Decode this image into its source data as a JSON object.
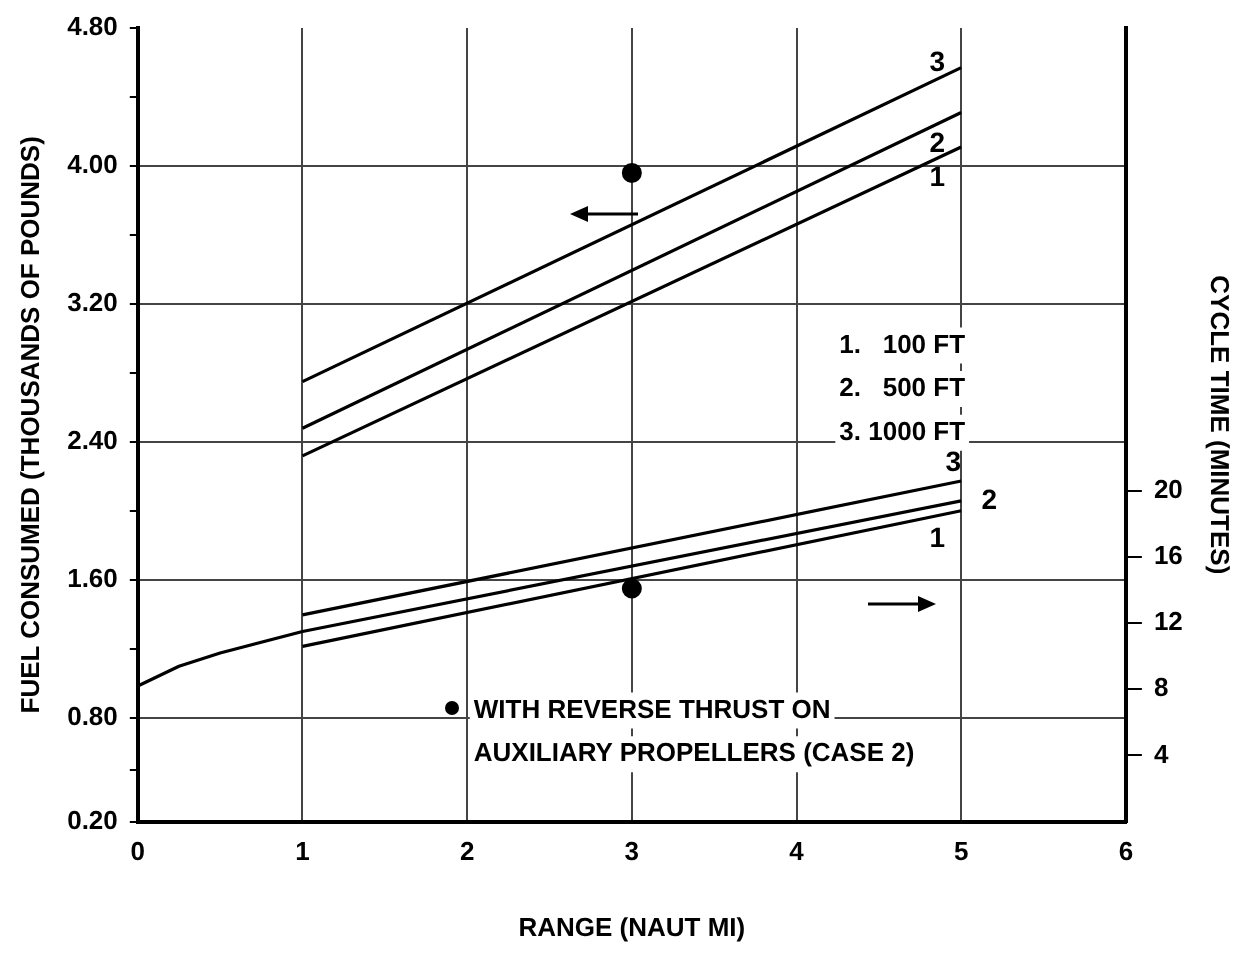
{
  "chart_data": {
    "type": "line",
    "xlabel": "RANGE (NAUT MI)",
    "ylabel": "FUEL CONSUMED (THOUSANDS OF POUNDS)",
    "y2label": "CYCLE TIME (MINUTES)",
    "xlim": [
      0,
      6
    ],
    "xticks": [
      0,
      1,
      2,
      3,
      4,
      5,
      6
    ],
    "ylim": [
      0.2,
      4.8
    ],
    "yticks": [
      {
        "value": 0.2,
        "label": "0.20"
      },
      {
        "value": 0.5,
        "label": null
      },
      {
        "value": 0.8,
        "label": "0.80"
      },
      {
        "value": 1.2,
        "label": null
      },
      {
        "value": 1.6,
        "label": "1.60"
      },
      {
        "value": 2.0,
        "label": null
      },
      {
        "value": 2.4,
        "label": "2.40"
      },
      {
        "value": 2.8,
        "label": null
      },
      {
        "value": 3.2,
        "label": "3.20"
      },
      {
        "value": 3.6,
        "label": null
      },
      {
        "value": 4.0,
        "label": "4.00"
      },
      {
        "value": 4.4,
        "label": null
      },
      {
        "value": 4.8,
        "label": "4.80"
      }
    ],
    "y2lim": [
      0,
      48
    ],
    "y2ticks": [
      4,
      8,
      12,
      16,
      20
    ],
    "grid": true,
    "legend": false,
    "marker": "none",
    "line_style": "solid",
    "series": [
      {
        "name": "1",
        "type": "line",
        "axis": "y",
        "color": "#000000",
        "x": [
          1,
          5
        ],
        "values": [
          2.32,
          4.11
        ]
      },
      {
        "name": "2",
        "type": "line",
        "axis": "y",
        "color": "#000000",
        "x": [
          1,
          5
        ],
        "values": [
          2.48,
          4.31
        ]
      },
      {
        "name": "3",
        "type": "line",
        "axis": "y",
        "color": "#000000",
        "x": [
          1,
          5
        ],
        "values": [
          2.75,
          4.57
        ]
      },
      {
        "name": "1",
        "type": "line",
        "axis": "y2",
        "color": "#000000",
        "x": [
          1,
          5
        ],
        "values": [
          10.6,
          18.8
        ]
      },
      {
        "name": "2",
        "type": "line",
        "axis": "y2",
        "color": "#000000",
        "x": [
          0,
          0.25,
          0.5,
          1,
          5
        ],
        "values": [
          8.2,
          9.4,
          10.2,
          11.5,
          19.4
        ]
      },
      {
        "name": "3",
        "type": "line",
        "axis": "y2",
        "color": "#000000",
        "x": [
          1,
          5
        ],
        "values": [
          12.5,
          20.6
        ]
      },
      {
        "type": "scatter",
        "axis": "y",
        "marker": "circle",
        "color": "#000000",
        "x": [
          3
        ],
        "values": [
          3.96
        ]
      },
      {
        "type": "scatter",
        "axis": "y2",
        "marker": "circle",
        "color": "#000000",
        "x": [
          3
        ],
        "values": [
          14.1
        ]
      }
    ],
    "annotations": [
      "1.   100 FT",
      "2.   500 FT",
      "3. 1000 FT",
      "WITH REVERSE THRUST ON",
      "AUXILIARY PROPELLERS (CASE 2)"
    ]
  }
}
